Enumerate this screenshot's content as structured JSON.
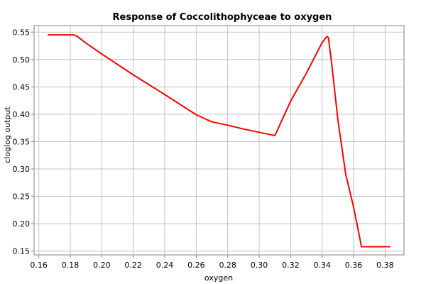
{
  "chart_data": {
    "type": "line",
    "title": "Response of Coccolithophyceae to oxygen",
    "xlabel": "oxygen",
    "ylabel": "cloglog output",
    "xlim": [
      0.157,
      0.392
    ],
    "ylim": [
      0.143,
      0.562
    ],
    "xticks": [
      "0.16",
      "0.18",
      "0.20",
      "0.22",
      "0.24",
      "0.26",
      "0.28",
      "0.30",
      "0.32",
      "0.34",
      "0.36",
      "0.38"
    ],
    "yticks": [
      "0.15",
      "0.20",
      "0.25",
      "0.30",
      "0.35",
      "0.40",
      "0.45",
      "0.50",
      "0.55"
    ],
    "grid": true,
    "series": [
      {
        "color": "#ff0000",
        "x": [
          0.166,
          0.182,
          0.184,
          0.19,
          0.2,
          0.22,
          0.24,
          0.26,
          0.27,
          0.28,
          0.29,
          0.3,
          0.31,
          0.32,
          0.33,
          0.34,
          0.343,
          0.344,
          0.346,
          0.35,
          0.355,
          0.36,
          0.365,
          0.383
        ],
        "y": [
          0.545,
          0.545,
          0.543,
          0.53,
          0.51,
          0.472,
          0.436,
          0.399,
          0.386,
          0.38,
          0.373,
          0.367,
          0.361,
          0.424,
          0.475,
          0.531,
          0.542,
          0.54,
          0.494,
          0.39,
          0.29,
          0.23,
          0.158,
          0.158
        ]
      }
    ]
  }
}
